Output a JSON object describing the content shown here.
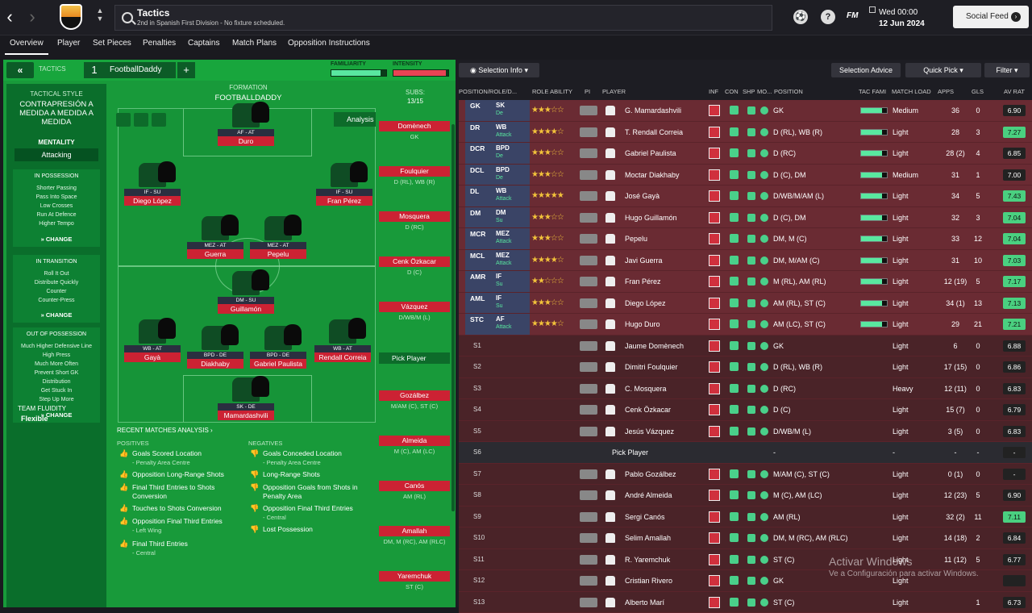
{
  "header": {
    "title": "Tactics",
    "subtitle": "2nd in Spanish First Division - No fixture scheduled.",
    "fm_label": "FM",
    "date_line1": "Wed 00:00",
    "date_line2": "12 Jun 2024",
    "social_feed": "Social Feed",
    "help": "?"
  },
  "tabs": [
    "Overview",
    "Player",
    "Set Pieces",
    "Penalties",
    "Captains",
    "Match Plans",
    "Opposition Instructions"
  ],
  "tactic": {
    "section_label": "TACTICS",
    "slot": "1",
    "name": "FootballDaddy",
    "familiarity_label": "FAMILIARITY",
    "intensity_label": "INTENSITY",
    "familiarity": 0.9,
    "intensity": 0.95,
    "style_label": "TACTICAL STYLE",
    "style_name": "CONTRAPRESIÓN A MEDIDA A MEDIDA A MEDIDA",
    "mentality_label": "MENTALITY",
    "mentality": "Attacking",
    "in_possession": {
      "title": "IN POSSESSION",
      "items": [
        "Shorter Passing",
        "Pass Into Space",
        "Low Crosses",
        "Run At Defence",
        "Higher Tempo"
      ]
    },
    "in_transition": {
      "title": "IN TRANSITION",
      "items": [
        "Roll It Out",
        "Distribute Quickly",
        "Counter",
        "Counter-Press"
      ]
    },
    "out_of_possession": {
      "title": "OUT OF POSSESSION",
      "items": [
        "Much Higher Defensive Line",
        "High Press",
        "Much More Often",
        "Prevent Short GK",
        "Distribution",
        "Get Stuck In",
        "Step Up More"
      ]
    },
    "change_label": "CHANGE",
    "fluidity_label": "TEAM FLUIDITY",
    "fluidity": "Flexible",
    "formation_label": "FORMATION",
    "formation_name": "FOOTBALLDADDY",
    "subs_label": "SUBS:",
    "subs_count": "13/15",
    "analysis_btn": "Analysis"
  },
  "pitch_players": [
    {
      "role": "AF - AT",
      "name": "Duro"
    },
    {
      "role": "IF - SU",
      "name": "Diego López"
    },
    {
      "role": "IF - SU",
      "name": "Fran Pérez"
    },
    {
      "role": "MEZ - AT",
      "name": "Guerra"
    },
    {
      "role": "MEZ - AT",
      "name": "Pepelu"
    },
    {
      "role": "DM - SU",
      "name": "Guillamón"
    },
    {
      "role": "WB - AT",
      "name": "Gayà"
    },
    {
      "role": "BPD - DE",
      "name": "Diakhaby"
    },
    {
      "role": "BPD - DE",
      "name": "Gabriel Paulista"
    },
    {
      "role": "WB - AT",
      "name": "Rendall Correia"
    },
    {
      "role": "SK - DE",
      "name": "Mamardashvili"
    }
  ],
  "subs_bench": [
    {
      "name": "Domènech",
      "pos": "GK"
    },
    {
      "name": "Foulquier",
      "pos": "D (RL), WB (R)"
    },
    {
      "name": "Mosquera",
      "pos": "D (RC)"
    },
    {
      "name": "Cenk Özkacar",
      "pos": "D (C)"
    },
    {
      "name": "Vázquez",
      "pos": "D/WB/M (L)"
    },
    {
      "name": "Gozálbez",
      "pos": "M/AM (C), ST (C)"
    },
    {
      "name": "Almeida",
      "pos": "M (C), AM (LC)"
    },
    {
      "name": "Canós",
      "pos": "AM (RL)"
    },
    {
      "name": "Amallah",
      "pos": "DM, M (RC), AM (RLC)"
    },
    {
      "name": "Yaremchuk",
      "pos": "ST (C)"
    }
  ],
  "pick_player": "Pick Player",
  "analysis": {
    "title": "RECENT MATCHES ANALYSIS",
    "positives_label": "POSITIVES",
    "negatives_label": "NEGATIVES",
    "positives": [
      {
        "t": "Goals Scored Location",
        "s": "- Penalty Area Centre"
      },
      {
        "t": "Opposition Long-Range Shots",
        "s": ""
      },
      {
        "t": "Final Third Entries to Shots Conversion",
        "s": ""
      },
      {
        "t": "Touches to Shots Conversion",
        "s": ""
      },
      {
        "t": "Opposition Final Third Entries",
        "s": "- Left Wing"
      },
      {
        "t": "Final Third Entries",
        "s": "- Central"
      }
    ],
    "negatives": [
      {
        "t": "Goals Conceded Location",
        "s": "- Penalty Area Centre"
      },
      {
        "t": "Long-Range Shots",
        "s": ""
      },
      {
        "t": "Opposition Goals from Shots in Penalty Area",
        "s": ""
      },
      {
        "t": "Opposition Final Third Entries",
        "s": "- Central"
      },
      {
        "t": "Lost Possession",
        "s": ""
      }
    ]
  },
  "right_toolbar": {
    "selection_info": "Selection Info",
    "selection_advice": "Selection Advice",
    "quick_pick": "Quick Pick",
    "filter": "Filter"
  },
  "columns": [
    "POSITION/ROLE/D...",
    "ROLE ABILITY",
    "PI",
    "PLAYER",
    "INF",
    "CON",
    "SHP",
    "MO...",
    "POSITION",
    "TAC FAMI",
    "MATCH LOAD",
    "APPS",
    "GLS",
    "AV RAT"
  ],
  "rows": [
    {
      "slot": "GK",
      "role": "SK",
      "duty": "De",
      "stars": "★★★☆☆",
      "player": "G. Mamardashvili",
      "position": "GK",
      "load": "Medium",
      "apps": "36",
      "gls": "0",
      "rat": "6.90",
      "hi": false
    },
    {
      "slot": "DR",
      "role": "WB",
      "duty": "Attack",
      "stars": "★★★★☆",
      "player": "T. Rendall Correia",
      "position": "D (RL), WB (R)",
      "load": "Light",
      "apps": "28",
      "gls": "3",
      "rat": "7.27",
      "hi": true
    },
    {
      "slot": "DCR",
      "role": "BPD",
      "duty": "De",
      "stars": "★★★☆☆",
      "player": "Gabriel Paulista",
      "position": "D (RC)",
      "load": "Light",
      "apps": "28 (2)",
      "gls": "4",
      "rat": "6.85",
      "hi": false
    },
    {
      "slot": "DCL",
      "role": "BPD",
      "duty": "De",
      "stars": "★★★☆☆",
      "player": "Moctar Diakhaby",
      "position": "D (C), DM",
      "load": "Medium",
      "apps": "31",
      "gls": "1",
      "rat": "7.00",
      "hi": false
    },
    {
      "slot": "DL",
      "role": "WB",
      "duty": "Attack",
      "stars": "★★★★★",
      "player": "José Gayà",
      "position": "D/WB/M/AM (L)",
      "load": "Light",
      "apps": "34",
      "gls": "5",
      "rat": "7.43",
      "hi": true
    },
    {
      "slot": "DM",
      "role": "DM",
      "duty": "Su",
      "stars": "★★★☆☆",
      "player": "Hugo Guillamón",
      "position": "D (C), DM",
      "load": "Light",
      "apps": "32",
      "gls": "3",
      "rat": "7.04",
      "hi": true
    },
    {
      "slot": "MCR",
      "role": "MEZ",
      "duty": "Attack",
      "stars": "★★★☆☆",
      "player": "Pepelu",
      "position": "DM, M (C)",
      "load": "Light",
      "apps": "33",
      "gls": "12",
      "rat": "7.04",
      "hi": true
    },
    {
      "slot": "MCL",
      "role": "MEZ",
      "duty": "Attack",
      "stars": "★★★★☆",
      "player": "Javi Guerra",
      "position": "DM, M/AM (C)",
      "load": "Light",
      "apps": "31",
      "gls": "10",
      "rat": "7.03",
      "hi": true
    },
    {
      "slot": "AMR",
      "role": "IF",
      "duty": "Su",
      "stars": "★★☆☆☆",
      "player": "Fran Pérez",
      "position": "M (RL), AM (RL)",
      "load": "Light",
      "apps": "12 (19)",
      "gls": "5",
      "rat": "7.17",
      "hi": true
    },
    {
      "slot": "AML",
      "role": "IF",
      "duty": "Su",
      "stars": "★★★☆☆",
      "player": "Diego López",
      "position": "AM (RL), ST (C)",
      "load": "Light",
      "apps": "34 (1)",
      "gls": "13",
      "rat": "7.13",
      "hi": true
    },
    {
      "slot": "STC",
      "role": "AF",
      "duty": "Attack",
      "stars": "★★★★☆",
      "player": "Hugo Duro",
      "position": "AM (LC), ST (C)",
      "load": "Light",
      "apps": "29",
      "gls": "21",
      "rat": "7.21",
      "hi": true
    },
    {
      "slot": "S1",
      "role": "",
      "duty": "",
      "stars": "",
      "player": "Jaume Domènech",
      "position": "GK",
      "load": "Light",
      "apps": "6",
      "gls": "0",
      "rat": "6.88",
      "hi": false
    },
    {
      "slot": "S2",
      "role": "",
      "duty": "",
      "stars": "",
      "player": "Dimitri Foulquier",
      "position": "D (RL), WB (R)",
      "load": "Light",
      "apps": "17 (15)",
      "gls": "0",
      "rat": "6.86",
      "hi": false
    },
    {
      "slot": "S3",
      "role": "",
      "duty": "",
      "stars": "",
      "player": "C. Mosquera",
      "position": "D (RC)",
      "load": "Heavy",
      "apps": "12 (11)",
      "gls": "0",
      "rat": "6.83",
      "hi": false
    },
    {
      "slot": "S4",
      "role": "",
      "duty": "",
      "stars": "",
      "player": "Cenk Özkacar",
      "position": "D (C)",
      "load": "Light",
      "apps": "15 (7)",
      "gls": "0",
      "rat": "6.79",
      "hi": false
    },
    {
      "slot": "S5",
      "role": "",
      "duty": "",
      "stars": "",
      "player": "Jesús Vázquez",
      "position": "D/WB/M (L)",
      "load": "Light",
      "apps": "3 (5)",
      "gls": "0",
      "rat": "6.83",
      "hi": false
    },
    {
      "slot": "S6",
      "role": "",
      "duty": "",
      "stars": "",
      "player": "Pick Player",
      "position": "-",
      "load": "-",
      "apps": "-",
      "gls": "-",
      "rat": "-",
      "hi": false
    },
    {
      "slot": "S7",
      "role": "",
      "duty": "",
      "stars": "",
      "player": "Pablo Gozálbez",
      "position": "M/AM (C), ST (C)",
      "load": "Light",
      "apps": "0 (1)",
      "gls": "0",
      "rat": "-",
      "hi": false
    },
    {
      "slot": "S8",
      "role": "",
      "duty": "",
      "stars": "",
      "player": "André Almeida",
      "position": "M (C), AM (LC)",
      "load": "Light",
      "apps": "12 (23)",
      "gls": "5",
      "rat": "6.90",
      "hi": false
    },
    {
      "slot": "S9",
      "role": "",
      "duty": "",
      "stars": "",
      "player": "Sergi Canós",
      "position": "AM (RL)",
      "load": "Light",
      "apps": "32 (2)",
      "gls": "11",
      "rat": "7.11",
      "hi": true
    },
    {
      "slot": "S10",
      "role": "",
      "duty": "",
      "stars": "",
      "player": "Selim Amallah",
      "position": "DM, M (RC), AM (RLC)",
      "load": "Light",
      "apps": "14 (18)",
      "gls": "2",
      "rat": "6.84",
      "hi": false
    },
    {
      "slot": "S11",
      "role": "",
      "duty": "",
      "stars": "",
      "player": "R. Yaremchuk",
      "position": "ST (C)",
      "load": "Light",
      "apps": "11 (12)",
      "gls": "5",
      "rat": "6.77",
      "hi": false
    },
    {
      "slot": "S12",
      "role": "",
      "duty": "",
      "stars": "",
      "player": "Cristian Rivero",
      "position": "GK",
      "load": "Light",
      "apps": "",
      "gls": "",
      "rat": "",
      "hi": false
    },
    {
      "slot": "S13",
      "role": "",
      "duty": "",
      "stars": "",
      "player": "Alberto Marí",
      "position": "ST (C)",
      "load": "Light",
      "apps": "",
      "gls": "1",
      "rat": "6.73",
      "hi": false
    }
  ],
  "watermark": {
    "line1": "Activar Windows",
    "line2": "Ve a Configuración para activar Windows."
  },
  "colors": {
    "pitch": "#169438",
    "panel": "#189a3a",
    "row": "#6a2b33",
    "accent": "#59e8a0",
    "danger": "#cc2233"
  }
}
